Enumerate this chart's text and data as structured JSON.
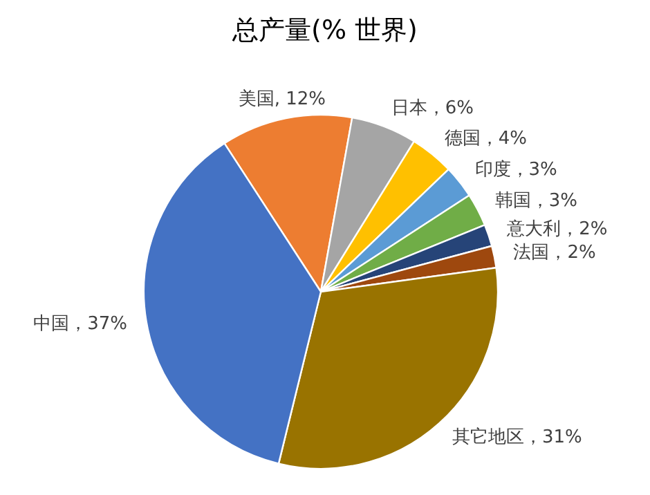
{
  "chart_data": {
    "type": "pie",
    "title": "总产量(% 世界)",
    "categories": [
      "美国",
      "日本",
      "德国",
      "印度",
      "韩国",
      "意大利",
      "法国",
      "其它地区",
      "中国"
    ],
    "values": [
      12,
      6,
      4,
      3,
      3,
      2,
      2,
      31,
      37
    ],
    "value_labels": [
      ", 12%",
      "，6%",
      "，4%",
      "，3%",
      "，3%",
      "，2%",
      "，2%",
      "，31%",
      "，37%"
    ],
    "colors": [
      "#ed7d31",
      "#a5a5a5",
      "#ffc000",
      "#5b9bd5",
      "#70ad47",
      "#264478",
      "#9e480e",
      "#997300",
      "#4472c4"
    ]
  }
}
